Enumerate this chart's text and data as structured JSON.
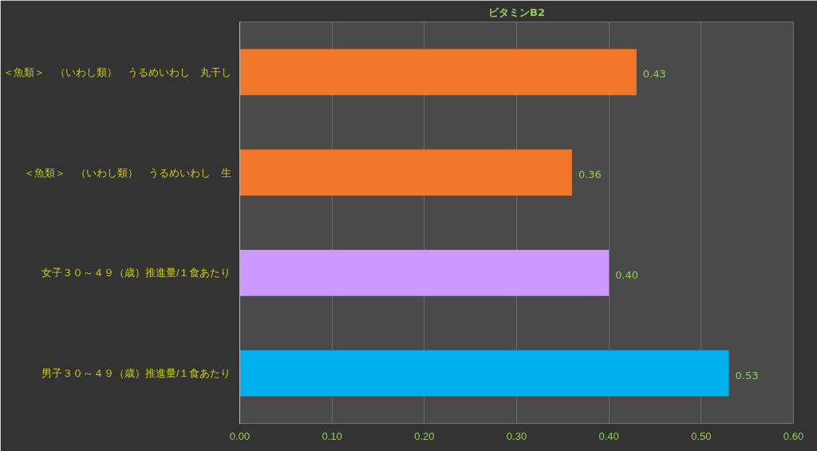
{
  "chart_data": {
    "type": "bar",
    "orientation": "horizontal",
    "title": "ビタミンB2",
    "categories": [
      "＜魚類＞　（いわし類）　うるめいわし　丸干し",
      "＜魚類＞　（いわし類）　うるめいわし　生",
      "女子３０～４９（歳）推進量/１食あたり",
      "男子３０～４９（歳）推進量/１食あたり"
    ],
    "values": [
      0.43,
      0.36,
      0.4,
      0.53
    ],
    "colors": [
      "#f07828",
      "#f07828",
      "#cc99ff",
      "#00b0f0"
    ],
    "value_labels": [
      "0.43",
      "0.36",
      "0.40",
      "0.53"
    ],
    "xlim": [
      0,
      0.6
    ],
    "xticks": [
      {
        "value": 0,
        "label": "0.00"
      },
      {
        "value": 0.1,
        "label": "0.10"
      },
      {
        "value": 0.2,
        "label": "0.20"
      },
      {
        "value": 0.3,
        "label": "0.30"
      },
      {
        "value": 0.4,
        "label": "0.40"
      },
      {
        "value": 0.5,
        "label": "0.50"
      },
      {
        "value": 0.6,
        "label": "0.60"
      }
    ],
    "grid": "x"
  }
}
